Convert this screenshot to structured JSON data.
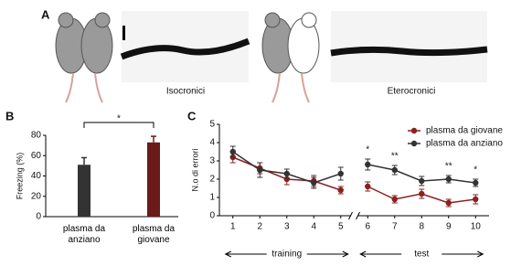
{
  "panel_labels": [
    "A",
    "B",
    "C"
  ],
  "panel_a": {
    "captions": [
      "Isocronici",
      "Eterocronici"
    ]
  },
  "chart_data": [
    {
      "type": "bar",
      "ylabel": "Freezing (%)",
      "categories": [
        "plasma da anziano",
        "plasma da giovane"
      ],
      "values": [
        51,
        73
      ],
      "errors": [
        7,
        6
      ],
      "colors": [
        "#333333",
        "#6b1a1a"
      ],
      "ylim": [
        0,
        80
      ],
      "yticks": [
        0,
        20,
        40,
        60,
        80
      ],
      "significance": "*"
    },
    {
      "type": "line",
      "ylabel": "N.o di errori",
      "x": [
        1,
        2,
        3,
        4,
        5,
        6,
        7,
        8,
        9,
        10
      ],
      "xlim": [
        0.5,
        10.5
      ],
      "xticks": [
        1,
        2,
        3,
        4,
        5,
        6,
        7,
        8,
        9,
        10
      ],
      "ylim": [
        0,
        5
      ],
      "yticks": [
        0,
        1,
        2,
        3,
        4,
        5
      ],
      "series": [
        {
          "name": "plasma da giovane",
          "color": "#8b2020",
          "values": [
            3.2,
            2.6,
            2.0,
            1.9,
            1.4,
            1.6,
            0.9,
            1.2,
            0.7,
            0.9
          ],
          "errors": [
            0.3,
            0.3,
            0.3,
            0.3,
            0.2,
            0.25,
            0.2,
            0.25,
            0.2,
            0.25
          ]
        },
        {
          "name": "plasma da anziano",
          "color": "#333333",
          "values": [
            3.5,
            2.5,
            2.3,
            1.8,
            2.3,
            2.8,
            2.5,
            1.9,
            2.0,
            1.8
          ],
          "errors": [
            0.3,
            0.4,
            0.25,
            0.3,
            0.35,
            0.3,
            0.25,
            0.25,
            0.2,
            0.2
          ]
        }
      ],
      "legend": "top-right",
      "annotations": [
        {
          "x": 6,
          "label": "*"
        },
        {
          "x": 7,
          "label": "**"
        },
        {
          "x": 9,
          "label": "**"
        },
        {
          "x": 10,
          "label": "*"
        }
      ],
      "phases": [
        {
          "from": 1,
          "to": 5,
          "label": "training"
        },
        {
          "from": 6,
          "to": 10,
          "label": "test"
        }
      ]
    }
  ]
}
